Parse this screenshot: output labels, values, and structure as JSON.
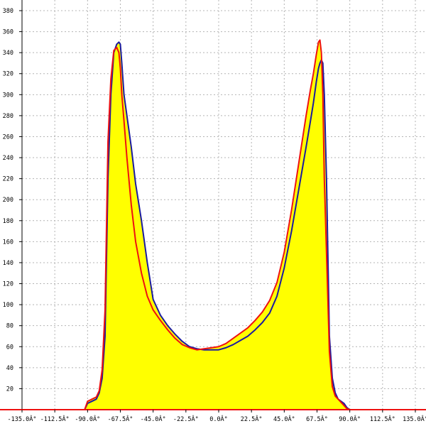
{
  "chart_data": {
    "type": "area",
    "title": "",
    "xlabel": "",
    "ylabel": "",
    "xlim": [
      -135,
      135
    ],
    "ylim": [
      0,
      380
    ],
    "grid": true,
    "x_ticks": [
      -135,
      -112.5,
      -90,
      -67.5,
      -45,
      -22.5,
      0,
      22.5,
      45,
      67.5,
      90,
      112.5,
      135
    ],
    "x_tick_labels": [
      "-135.0Â°",
      "-112.5Â°",
      "-90.0Â°",
      "-67.5Â°",
      "-45.0Â°",
      "-22.5Â°",
      "0.0Â°",
      "22.5Â°",
      "45.0Â°",
      "67.5Â°",
      "90.0Â°",
      "112.5Â°",
      "135.0Â°"
    ],
    "y_ticks": [
      20,
      40,
      60,
      80,
      100,
      120,
      140,
      160,
      180,
      200,
      220,
      240,
      260,
      280,
      300,
      320,
      340,
      360,
      380
    ],
    "y_tick_labels": [
      "20",
      "40",
      "60",
      "80",
      "100",
      "120",
      "140",
      "160",
      "180",
      "200",
      "220",
      "240",
      "260",
      "280",
      "300",
      "320",
      "340",
      "360",
      "380"
    ],
    "colors": {
      "fill": "#ffff00",
      "blue": "#1a1aa0",
      "red": "#ee1111",
      "axis": "#000000",
      "grid": "#b4b4b4"
    },
    "series": [
      {
        "color": "blue",
        "x": [
          -135,
          -92,
          -90,
          -87,
          -84,
          -82,
          -80,
          -78,
          -76,
          -74,
          -72,
          -70,
          -68.5,
          -67.5,
          -66.5,
          -65,
          -63,
          -60,
          -57,
          -53,
          -49,
          -45,
          -40,
          -35,
          -30,
          -25,
          -20,
          -15,
          -10,
          -5,
          0,
          5,
          10,
          15,
          20,
          25,
          30,
          35,
          40,
          45,
          50,
          55,
          60,
          63,
          65,
          67,
          68.5,
          69.5,
          70.5,
          71.5,
          72.5,
          74,
          76,
          78,
          80,
          82,
          84,
          86,
          88,
          90,
          92,
          135
        ],
        "y": [
          0,
          0,
          6,
          8,
          10,
          16,
          30,
          70,
          220,
          300,
          340,
          348,
          350,
          348,
          330,
          300,
          280,
          250,
          215,
          180,
          140,
          105,
          90,
          80,
          72,
          65,
          60,
          58,
          57,
          57,
          57,
          59,
          62,
          66,
          70,
          76,
          83,
          92,
          108,
          135,
          170,
          210,
          250,
          275,
          292,
          312,
          325,
          330,
          333,
          330,
          300,
          220,
          70,
          30,
          16,
          10,
          8,
          6,
          2,
          0,
          0,
          0
        ]
      },
      {
        "color": "red",
        "x": [
          -135,
          -92,
          -90,
          -87,
          -84,
          -82,
          -80,
          -78,
          -76,
          -74,
          -72,
          -70,
          -68.5,
          -67.5,
          -66.5,
          -65,
          -63,
          -60,
          -57,
          -53,
          -49,
          -45,
          -40,
          -35,
          -30,
          -25,
          -20,
          -15,
          -10,
          -5,
          0,
          5,
          10,
          15,
          20,
          25,
          30,
          35,
          40,
          45,
          50,
          55,
          60,
          63,
          65,
          67,
          68.5,
          69.5,
          70.5,
          71.5,
          72.5,
          74,
          76,
          78,
          80,
          82,
          84,
          86,
          88,
          90,
          92,
          135
        ],
        "y": [
          0,
          0,
          8,
          10,
          12,
          18,
          38,
          95,
          255,
          315,
          342,
          345,
          340,
          325,
          300,
          275,
          240,
          195,
          160,
          130,
          108,
          95,
          85,
          76,
          68,
          62,
          59,
          57,
          58,
          59,
          60,
          63,
          68,
          73,
          78,
          85,
          93,
          104,
          121,
          150,
          190,
          235,
          280,
          305,
          320,
          338,
          350,
          352,
          340,
          300,
          220,
          150,
          55,
          22,
          13,
          10,
          7,
          4,
          1,
          0,
          0,
          0
        ]
      }
    ]
  }
}
